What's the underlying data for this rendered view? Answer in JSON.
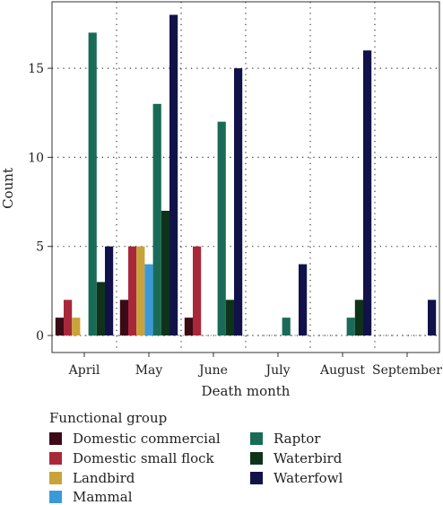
{
  "chart_data": {
    "type": "bar",
    "title": "",
    "xlabel": "Death month",
    "ylabel": "Count",
    "ylim": [
      0,
      19
    ],
    "yticks": [
      0,
      5,
      10,
      15
    ],
    "grid": true,
    "legend_position": "bottom",
    "legend_title": "Functional group",
    "categories": [
      "April",
      "May",
      "June",
      "July",
      "August",
      "September"
    ],
    "series": [
      {
        "name": "Domestic commercial",
        "color": "#3b0a17",
        "values": [
          1,
          2,
          1,
          0,
          0,
          0
        ]
      },
      {
        "name": "Domestic small flock",
        "color": "#a8283a",
        "values": [
          2,
          5,
          5,
          0,
          0,
          0
        ]
      },
      {
        "name": "Landbird",
        "color": "#c9a23a",
        "values": [
          1,
          5,
          0,
          0,
          0,
          0
        ]
      },
      {
        "name": "Mammal",
        "color": "#3a9ad9",
        "values": [
          0,
          4,
          0,
          0,
          0,
          0
        ]
      },
      {
        "name": "Raptor",
        "color": "#196b58",
        "values": [
          17,
          13,
          12,
          1,
          1,
          0
        ]
      },
      {
        "name": "Waterbird",
        "color": "#0f331a",
        "values": [
          3,
          7,
          2,
          0,
          2,
          0
        ]
      },
      {
        "name": "Waterfowl",
        "color": "#12124a",
        "values": [
          5,
          18,
          15,
          4,
          16,
          2
        ]
      }
    ]
  }
}
